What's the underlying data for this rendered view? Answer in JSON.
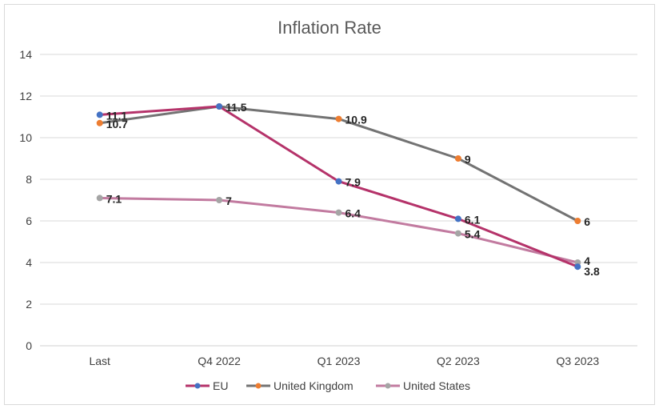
{
  "chart_data": {
    "type": "line",
    "title": "Inflation Rate",
    "xlabel": "",
    "ylabel": "",
    "categories": [
      "Last",
      "Q4 2022",
      "Q1 2023",
      "Q2 2023",
      "Q3 2023"
    ],
    "ylim": [
      0,
      14
    ],
    "yticks": [
      0,
      2,
      4,
      6,
      8,
      10,
      12,
      14
    ],
    "grid": true,
    "legend_position": "bottom",
    "series": [
      {
        "name": "EU",
        "values": [
          11.1,
          11.5,
          7.9,
          6.1,
          3.8
        ],
        "labels": [
          "11.1",
          "11.5",
          "7.9",
          "6.1",
          "3.8"
        ],
        "line_color": "#b5336a",
        "marker_color": "#4472c4"
      },
      {
        "name": "United Kingdom",
        "values": [
          10.7,
          11.5,
          10.9,
          9,
          6
        ],
        "labels": [
          "10.7",
          "11.5",
          "10.9",
          "9",
          "6"
        ],
        "line_color": "#737373",
        "marker_color": "#ed7d31"
      },
      {
        "name": "United States",
        "values": [
          7.1,
          7,
          6.4,
          5.4,
          4
        ],
        "labels": [
          "7.1",
          "7",
          "6.4",
          "5.4",
          "4"
        ],
        "line_color": "#c27ba0",
        "marker_color": "#a5a5a5"
      }
    ]
  }
}
